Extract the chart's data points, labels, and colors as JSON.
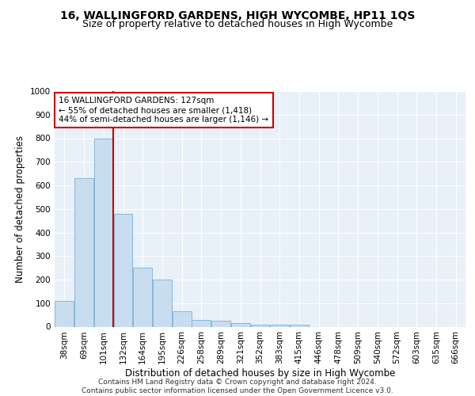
{
  "title": "16, WALLINGFORD GARDENS, HIGH WYCOMBE, HP11 1QS",
  "subtitle": "Size of property relative to detached houses in High Wycombe",
  "xlabel": "Distribution of detached houses by size in High Wycombe",
  "ylabel": "Number of detached properties",
  "categories": [
    "38sqm",
    "69sqm",
    "101sqm",
    "132sqm",
    "164sqm",
    "195sqm",
    "226sqm",
    "258sqm",
    "289sqm",
    "321sqm",
    "352sqm",
    "383sqm",
    "415sqm",
    "446sqm",
    "478sqm",
    "509sqm",
    "540sqm",
    "572sqm",
    "603sqm",
    "635sqm",
    "666sqm"
  ],
  "values": [
    110,
    630,
    800,
    480,
    250,
    200,
    65,
    30,
    25,
    15,
    10,
    10,
    10,
    0,
    0,
    0,
    0,
    0,
    0,
    0,
    0
  ],
  "bar_color": "#c9ddf0",
  "bar_edge_color": "#7aafd4",
  "vline_color": "#cc0000",
  "annotation_text": "16 WALLINGFORD GARDENS: 127sqm\n← 55% of detached houses are smaller (1,418)\n44% of semi-detached houses are larger (1,146) →",
  "annotation_box_color": "#ffffff",
  "annotation_box_edge": "#cc0000",
  "ylim": [
    0,
    1000
  ],
  "yticks": [
    0,
    100,
    200,
    300,
    400,
    500,
    600,
    700,
    800,
    900,
    1000
  ],
  "background_color": "#e8f0f8",
  "grid_color": "#ffffff",
  "footer_line1": "Contains HM Land Registry data © Crown copyright and database right 2024.",
  "footer_line2": "Contains public sector information licensed under the Open Government Licence v3.0.",
  "title_fontsize": 10,
  "subtitle_fontsize": 9,
  "xlabel_fontsize": 8.5,
  "ylabel_fontsize": 8.5,
  "tick_fontsize": 7.5,
  "annotation_fontsize": 7.5,
  "footer_fontsize": 6.5
}
